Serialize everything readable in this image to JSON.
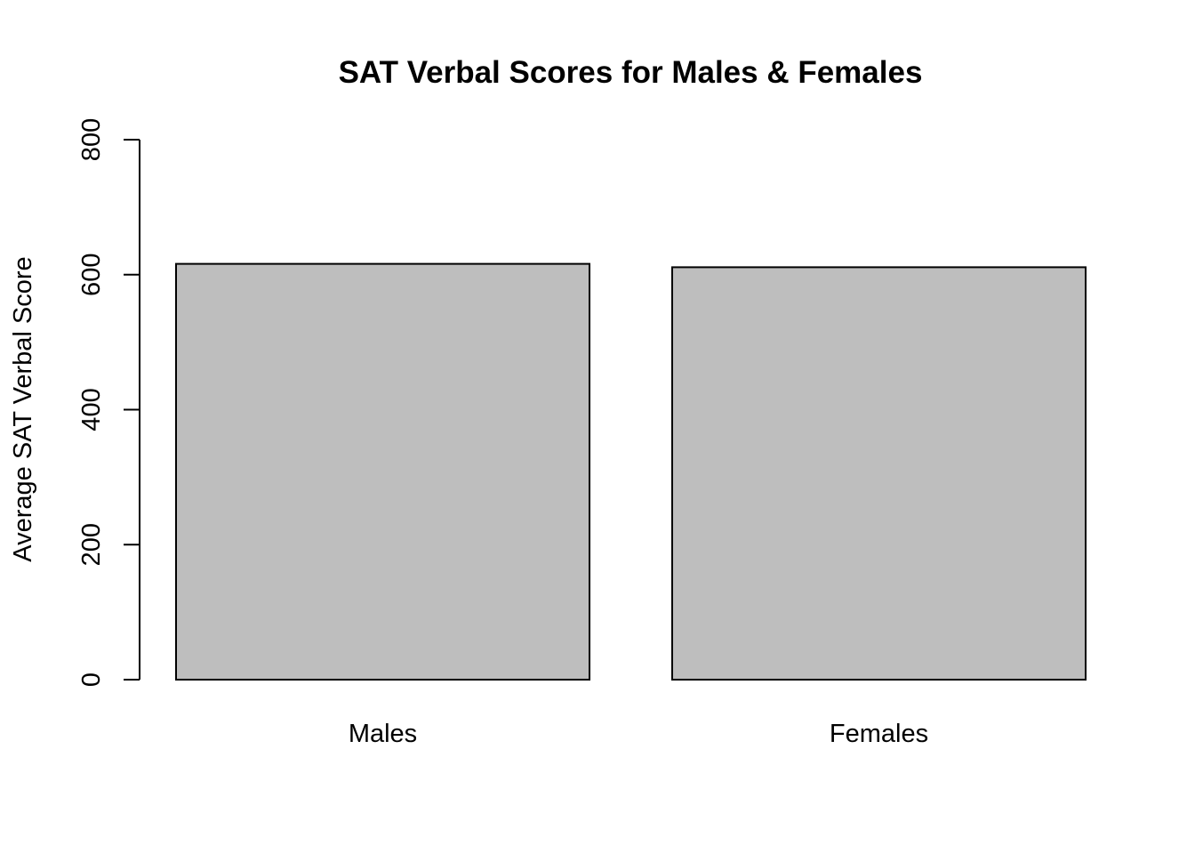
{
  "chart_data": {
    "type": "bar",
    "title": "SAT Verbal Scores for Males & Females",
    "xlabel": "",
    "ylabel": "Average SAT Verbal Score",
    "categories": [
      "Males",
      "Females"
    ],
    "values": [
      616,
      611
    ],
    "ylim": [
      0,
      800
    ],
    "yticks": [
      0,
      200,
      400,
      600,
      800
    ],
    "grid": false,
    "bar_color": "#bebebe",
    "border_color": "#000000"
  }
}
